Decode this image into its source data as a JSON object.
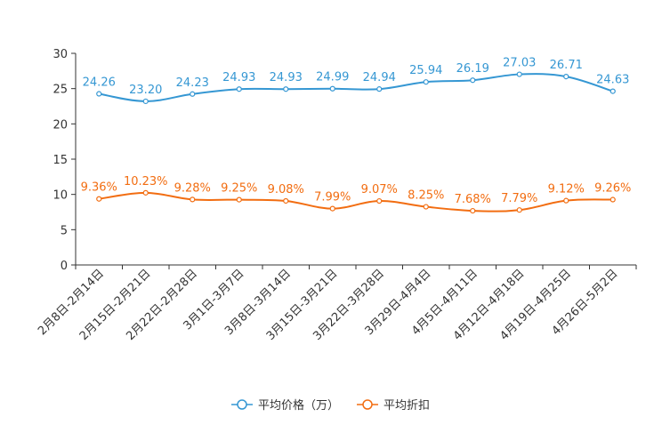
{
  "chart_data": {
    "type": "line",
    "categories": [
      "2月8日-2月14日",
      "2月15日-2月21日",
      "2月22日-2月28日",
      "3月1日-3月7日",
      "3月8日-3月14日",
      "3月15日-3月21日",
      "3月22日-3月28日",
      "3月29日-4月4日",
      "4月5日-4月11日",
      "4月12日-4月18日",
      "4月19日-4月25日",
      "4月26日-5月2日"
    ],
    "ylim": [
      0,
      30
    ],
    "yticks": [
      0,
      5,
      10,
      15,
      20,
      25,
      30
    ],
    "series": [
      {
        "name": "平均价格（万）",
        "color": "#3597d3",
        "values": [
          24.26,
          23.2,
          24.23,
          24.93,
          24.93,
          24.99,
          24.94,
          25.94,
          26.19,
          27.03,
          26.71,
          24.63
        ],
        "labels": [
          "24.26",
          "23.20",
          "24.23",
          "24.93",
          "24.93",
          "24.99",
          "24.94",
          "25.94",
          "26.19",
          "27.03",
          "26.71",
          "24.63"
        ]
      },
      {
        "name": "平均折扣",
        "color": "#f26d11",
        "values": [
          9.36,
          10.23,
          9.28,
          9.25,
          9.08,
          7.99,
          9.07,
          8.25,
          7.68,
          7.79,
          9.12,
          9.26
        ],
        "labels": [
          "9.36%",
          "10.23%",
          "9.28%",
          "9.25%",
          "9.08%",
          "7.99%",
          "9.07%",
          "8.25%",
          "7.68%",
          "7.79%",
          "9.12%",
          "9.26%"
        ]
      }
    ],
    "legend_position": "bottom-center",
    "grid": false
  }
}
